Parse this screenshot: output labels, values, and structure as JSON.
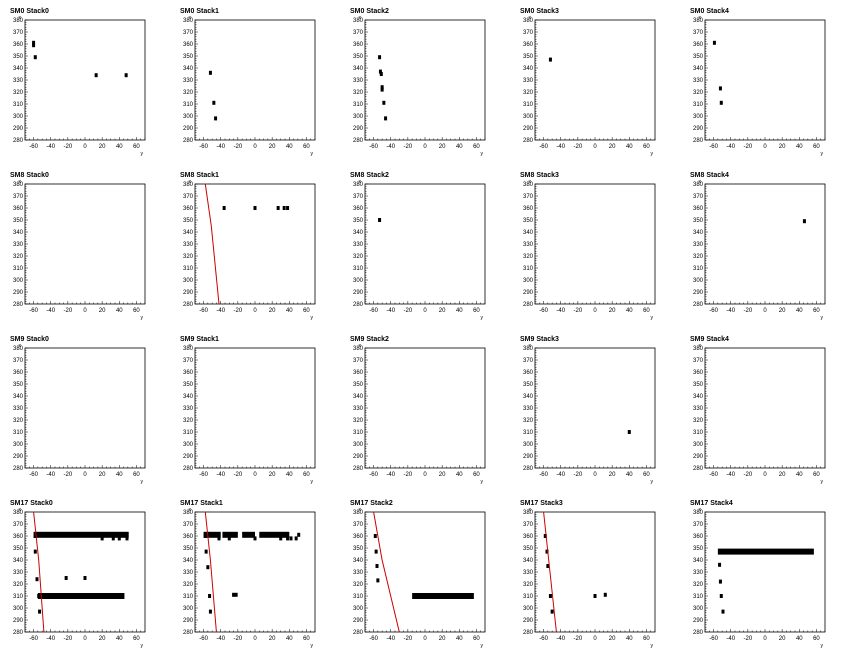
{
  "chart_data": [
    {
      "type": "scatter",
      "title": "SM0 Stack0",
      "xlabel": "y",
      "ylabel": "x",
      "xlim": [
        -70,
        70
      ],
      "ylim": [
        280,
        380
      ],
      "xticks": [
        -60,
        -40,
        -20,
        0,
        20,
        40,
        60
      ],
      "yticks": [
        280,
        290,
        300,
        310,
        320,
        330,
        340,
        350,
        360,
        370,
        380
      ],
      "points": [
        [
          -60,
          361
        ],
        [
          -60,
          359
        ],
        [
          -58,
          349
        ],
        [
          13,
          334
        ],
        [
          48,
          334
        ]
      ],
      "lines": []
    },
    {
      "type": "scatter",
      "title": "SM0 Stack1",
      "xlabel": "y",
      "ylabel": "x",
      "xlim": [
        -70,
        70
      ],
      "ylim": [
        280,
        380
      ],
      "xticks": [
        -60,
        -40,
        -20,
        0,
        20,
        40,
        60
      ],
      "yticks": [
        280,
        290,
        300,
        310,
        320,
        330,
        340,
        350,
        360,
        370,
        380
      ],
      "points": [
        [
          -52,
          336
        ],
        [
          -48,
          311
        ],
        [
          -46,
          298
        ]
      ],
      "lines": []
    },
    {
      "type": "scatter",
      "title": "SM0 Stack2",
      "xlabel": "y",
      "ylabel": "x",
      "xlim": [
        -70,
        70
      ],
      "ylim": [
        280,
        380
      ],
      "xticks": [
        -60,
        -40,
        -20,
        0,
        20,
        40,
        60
      ],
      "yticks": [
        280,
        290,
        300,
        310,
        320,
        330,
        340,
        350,
        360,
        370,
        380
      ],
      "points": [
        [
          -53,
          349
        ],
        [
          -52,
          337
        ],
        [
          -51,
          335
        ],
        [
          -50,
          324
        ],
        [
          -50,
          322
        ],
        [
          -48,
          311
        ],
        [
          -46,
          298
        ]
      ],
      "lines": []
    },
    {
      "type": "scatter",
      "title": "SM0 Stack3",
      "xlabel": "y",
      "ylabel": "x",
      "xlim": [
        -70,
        70
      ],
      "ylim": [
        280,
        380
      ],
      "xticks": [
        -60,
        -40,
        -20,
        0,
        20,
        40,
        60
      ],
      "yticks": [
        280,
        290,
        300,
        310,
        320,
        330,
        340,
        350,
        360,
        370,
        380
      ],
      "points": [
        [
          -52,
          347
        ]
      ],
      "lines": []
    },
    {
      "type": "scatter",
      "title": "SM0 Stack4",
      "xlabel": "y",
      "ylabel": "x",
      "xlim": [
        -70,
        70
      ],
      "ylim": [
        280,
        380
      ],
      "xticks": [
        -60,
        -40,
        -20,
        0,
        20,
        40,
        60
      ],
      "yticks": [
        280,
        290,
        300,
        310,
        320,
        330,
        340,
        350,
        360,
        370,
        380
      ],
      "points": [
        [
          -59,
          361
        ],
        [
          -52,
          323
        ],
        [
          -51,
          311
        ]
      ],
      "lines": []
    },
    {
      "type": "scatter",
      "title": "SM8 Stack0",
      "xlabel": "y",
      "ylabel": "x",
      "xlim": [
        -70,
        70
      ],
      "ylim": [
        280,
        380
      ],
      "xticks": [
        -60,
        -40,
        -20,
        0,
        20,
        40,
        60
      ],
      "yticks": [
        280,
        290,
        300,
        310,
        320,
        330,
        340,
        350,
        360,
        370,
        380
      ],
      "points": [],
      "lines": []
    },
    {
      "type": "scatter",
      "title": "SM8 Stack1",
      "xlabel": "y",
      "ylabel": "x",
      "xlim": [
        -70,
        70
      ],
      "ylim": [
        280,
        380
      ],
      "xticks": [
        -60,
        -40,
        -20,
        0,
        20,
        40,
        60
      ],
      "yticks": [
        280,
        290,
        300,
        310,
        320,
        330,
        340,
        350,
        360,
        370,
        380
      ],
      "points": [
        [
          -36,
          360
        ],
        [
          0,
          360
        ],
        [
          27,
          360
        ],
        [
          34,
          360
        ],
        [
          38,
          360
        ]
      ],
      "lines": [
        [
          [
            -58,
            380
          ],
          [
            -51,
            345
          ],
          [
            -42,
            280
          ]
        ]
      ]
    },
    {
      "type": "scatter",
      "title": "SM8 Stack2",
      "xlabel": "y",
      "ylabel": "x",
      "xlim": [
        -70,
        70
      ],
      "ylim": [
        280,
        380
      ],
      "xticks": [
        -60,
        -40,
        -20,
        0,
        20,
        40,
        60
      ],
      "yticks": [
        280,
        290,
        300,
        310,
        320,
        330,
        340,
        350,
        360,
        370,
        380
      ],
      "points": [
        [
          -53,
          350
        ]
      ],
      "lines": []
    },
    {
      "type": "scatter",
      "title": "SM8 Stack3",
      "xlabel": "y",
      "ylabel": "x",
      "xlim": [
        -70,
        70
      ],
      "ylim": [
        280,
        380
      ],
      "xticks": [
        -60,
        -40,
        -20,
        0,
        20,
        40,
        60
      ],
      "yticks": [
        280,
        290,
        300,
        310,
        320,
        330,
        340,
        350,
        360,
        370,
        380
      ],
      "points": [],
      "lines": []
    },
    {
      "type": "scatter",
      "title": "SM8 Stack4",
      "xlabel": "y",
      "ylabel": "x",
      "xlim": [
        -70,
        70
      ],
      "ylim": [
        280,
        380
      ],
      "xticks": [
        -60,
        -40,
        -20,
        0,
        20,
        40,
        60
      ],
      "yticks": [
        280,
        290,
        300,
        310,
        320,
        330,
        340,
        350,
        360,
        370,
        380
      ],
      "points": [
        [
          46,
          349
        ]
      ],
      "lines": []
    },
    {
      "type": "scatter",
      "title": "SM9 Stack0",
      "xlabel": "y",
      "ylabel": "x",
      "xlim": [
        -70,
        70
      ],
      "ylim": [
        280,
        380
      ],
      "xticks": [
        -60,
        -40,
        -20,
        0,
        20,
        40,
        60
      ],
      "yticks": [
        280,
        290,
        300,
        310,
        320,
        330,
        340,
        350,
        360,
        370,
        380
      ],
      "points": [],
      "lines": []
    },
    {
      "type": "scatter",
      "title": "SM9 Stack1",
      "xlabel": "y",
      "ylabel": "x",
      "xlim": [
        -70,
        70
      ],
      "ylim": [
        280,
        380
      ],
      "xticks": [
        -60,
        -40,
        -20,
        0,
        20,
        40,
        60
      ],
      "yticks": [
        280,
        290,
        300,
        310,
        320,
        330,
        340,
        350,
        360,
        370,
        380
      ],
      "points": [],
      "lines": []
    },
    {
      "type": "scatter",
      "title": "SM9 Stack2",
      "xlabel": "y",
      "ylabel": "x",
      "xlim": [
        -70,
        70
      ],
      "ylim": [
        280,
        380
      ],
      "xticks": [
        -60,
        -40,
        -20,
        0,
        20,
        40,
        60
      ],
      "yticks": [
        280,
        290,
        300,
        310,
        320,
        330,
        340,
        350,
        360,
        370,
        380
      ],
      "points": [],
      "lines": []
    },
    {
      "type": "scatter",
      "title": "SM9 Stack3",
      "xlabel": "y",
      "ylabel": "x",
      "xlim": [
        -70,
        70
      ],
      "ylim": [
        280,
        380
      ],
      "xticks": [
        -60,
        -40,
        -20,
        0,
        20,
        40,
        60
      ],
      "yticks": [
        280,
        290,
        300,
        310,
        320,
        330,
        340,
        350,
        360,
        370,
        380
      ],
      "points": [
        [
          40,
          310
        ]
      ],
      "lines": []
    },
    {
      "type": "scatter",
      "title": "SM9 Stack4",
      "xlabel": "y",
      "ylabel": "x",
      "xlim": [
        -70,
        70
      ],
      "ylim": [
        280,
        380
      ],
      "xticks": [
        -60,
        -40,
        -20,
        0,
        20,
        40,
        60
      ],
      "yticks": [
        280,
        290,
        300,
        310,
        320,
        330,
        340,
        350,
        360,
        370,
        380
      ],
      "points": [],
      "lines": []
    },
    {
      "type": "scatter",
      "title": "SM17 Stack0",
      "xlabel": "y",
      "ylabel": "x",
      "xlim": [
        -70,
        70
      ],
      "ylim": [
        280,
        380
      ],
      "xticks": [
        -60,
        -40,
        -20,
        0,
        20,
        40,
        60
      ],
      "yticks": [
        280,
        290,
        300,
        310,
        320,
        330,
        340,
        350,
        360,
        370,
        380
      ],
      "points": [
        [
          -58,
          360
        ],
        [
          -58,
          347
        ],
        [
          -56,
          324
        ],
        [
          -54,
          310
        ],
        [
          -53,
          297
        ],
        [
          -22,
          325
        ],
        [
          0,
          325
        ],
        [
          20,
          358
        ],
        [
          33,
          358
        ],
        [
          40,
          358
        ],
        [
          49,
          358
        ]
      ],
      "bands": [
        {
          "x0": -60,
          "x1": 51,
          "y": 361
        },
        {
          "x0": -55,
          "x1": 46,
          "y": 310
        }
      ],
      "lines": [
        [
          [
            -60,
            380
          ],
          [
            -54,
            340
          ],
          [
            -48,
            280
          ]
        ]
      ]
    },
    {
      "type": "scatter",
      "title": "SM17 Stack1",
      "xlabel": "y",
      "ylabel": "x",
      "xlim": [
        -70,
        70
      ],
      "ylim": [
        280,
        380
      ],
      "xticks": [
        -60,
        -40,
        -20,
        0,
        20,
        40,
        60
      ],
      "yticks": [
        280,
        290,
        300,
        310,
        320,
        330,
        340,
        350,
        360,
        370,
        380
      ],
      "points": [
        [
          -58,
          360
        ],
        [
          -57,
          347
        ],
        [
          -55,
          334
        ],
        [
          -53,
          310
        ],
        [
          -52,
          297
        ],
        [
          -42,
          358
        ],
        [
          -30,
          358
        ],
        [
          -25,
          311
        ],
        [
          -22,
          311
        ],
        [
          0,
          358
        ],
        [
          30,
          358
        ],
        [
          38,
          358
        ],
        [
          42,
          358
        ],
        [
          48,
          358
        ],
        [
          51,
          361
        ]
      ],
      "bands": [
        {
          "x0": -60,
          "x1": -40,
          "y": 361
        },
        {
          "x0": -38,
          "x1": -20,
          "y": 361
        },
        {
          "x0": -15,
          "x1": 0,
          "y": 361
        },
        {
          "x0": 5,
          "x1": 40,
          "y": 361
        }
      ],
      "lines": [
        [
          [
            -58,
            380
          ],
          [
            -52,
            340
          ],
          [
            -45,
            280
          ]
        ]
      ]
    },
    {
      "type": "scatter",
      "title": "SM17 Stack2",
      "xlabel": "y",
      "ylabel": "x",
      "xlim": [
        -70,
        70
      ],
      "ylim": [
        280,
        380
      ],
      "xticks": [
        -60,
        -40,
        -20,
        0,
        20,
        40,
        60
      ],
      "yticks": [
        280,
        290,
        300,
        310,
        320,
        330,
        340,
        350,
        360,
        370,
        380
      ],
      "points": [
        [
          -58,
          360
        ],
        [
          -57,
          347
        ],
        [
          -56,
          335
        ],
        [
          -55,
          323
        ]
      ],
      "bands": [
        {
          "x0": -15,
          "x1": 57,
          "y": 310
        }
      ],
      "lines": [
        [
          [
            -60,
            380
          ],
          [
            -50,
            340
          ],
          [
            -30,
            280
          ]
        ]
      ]
    },
    {
      "type": "scatter",
      "title": "SM17 Stack3",
      "xlabel": "y",
      "ylabel": "x",
      "xlim": [
        -70,
        70
      ],
      "ylim": [
        280,
        380
      ],
      "xticks": [
        -60,
        -40,
        -20,
        0,
        20,
        40,
        60
      ],
      "yticks": [
        280,
        290,
        300,
        310,
        320,
        330,
        340,
        350,
        360,
        370,
        380
      ],
      "points": [
        [
          -58,
          360
        ],
        [
          -56,
          347
        ],
        [
          -55,
          335
        ],
        [
          -52,
          310
        ],
        [
          -50,
          297
        ],
        [
          0,
          310
        ],
        [
          12,
          311
        ]
      ],
      "lines": [
        [
          [
            -60,
            380
          ],
          [
            -54,
            340
          ],
          [
            -45,
            280
          ]
        ]
      ]
    },
    {
      "type": "scatter",
      "title": "SM17 Stack4",
      "xlabel": "y",
      "ylabel": "x",
      "xlim": [
        -70,
        70
      ],
      "ylim": [
        280,
        380
      ],
      "xticks": [
        -60,
        -40,
        -20,
        0,
        20,
        40,
        60
      ],
      "yticks": [
        280,
        290,
        300,
        310,
        320,
        330,
        340,
        350,
        360,
        370,
        380
      ],
      "points": [
        [
          -53,
          336
        ],
        [
          -52,
          322
        ],
        [
          -51,
          310
        ],
        [
          -49,
          297
        ]
      ],
      "bands": [
        {
          "x0": -55,
          "x1": 57,
          "y": 347
        }
      ],
      "lines": []
    }
  ],
  "colors": {
    "marker": "#000000",
    "track_line": "#cc0000",
    "frame": "#000000",
    "background": "#ffffff"
  }
}
